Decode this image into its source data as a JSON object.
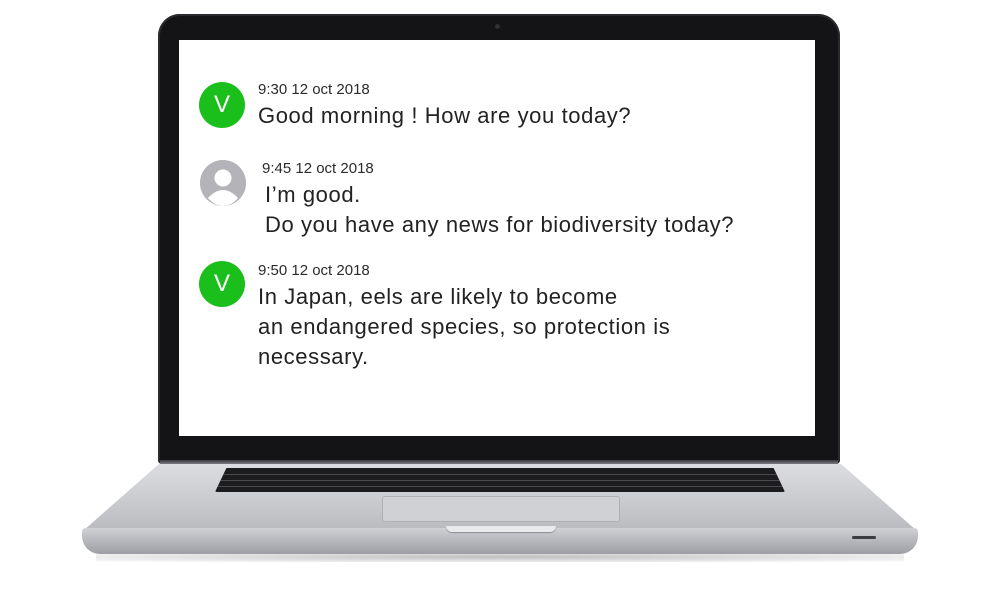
{
  "chat": {
    "messages": [
      {
        "sender": "V",
        "avatar_type": "letter",
        "avatar_color": "#1bbf1b",
        "timestamp": "9:30 12 oct 2018",
        "lines": [
          "Good morning ! How are you today?"
        ]
      },
      {
        "sender": "user",
        "avatar_type": "person-icon",
        "avatar_color": "#b4b4b8",
        "timestamp": "9:45 12 oct 2018",
        "lines": [
          "I’m good.",
          "Do you have any news for biodiversity today?"
        ]
      },
      {
        "sender": "V",
        "avatar_type": "letter",
        "avatar_color": "#1bbf1b",
        "timestamp": "9:50 12 oct 2018",
        "lines": [
          "In Japan, eels are likely to become",
          "an endangered species, so protection is",
          "necessary."
        ]
      }
    ]
  },
  "device": {
    "type": "laptop",
    "bezel_color": "#141416",
    "body_color": "#c4c6ca"
  }
}
